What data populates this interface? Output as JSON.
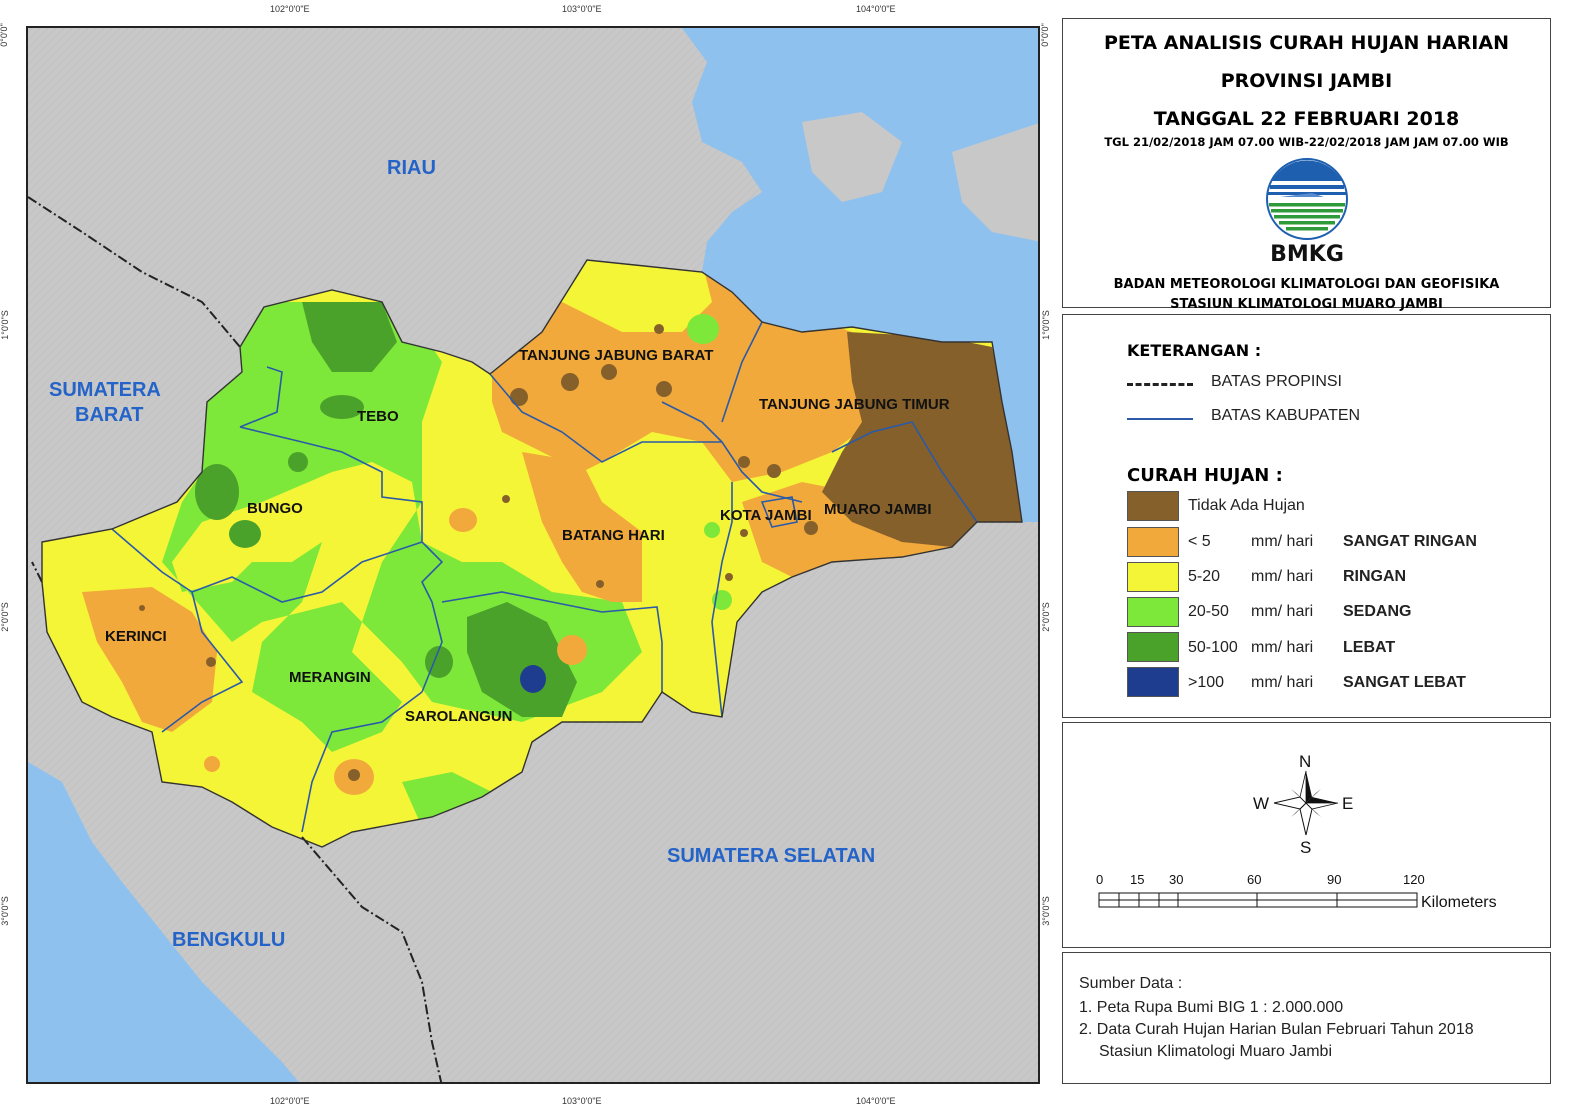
{
  "coords": {
    "top": [
      "102°0'0\"E",
      "103°0'0\"E",
      "104°0'0\"E"
    ],
    "bottom": [
      "102°0'0\"E",
      "103°0'0\"E",
      "104°0'0\"E"
    ],
    "left": [
      "0°0'0\"",
      "1°0'0\"S",
      "2°0'0\"S",
      "3°0'0\"S"
    ],
    "right": [
      "0°0'0\"",
      "1°0'0\"S",
      "2°0'0\"S",
      "3°0'0\"S"
    ]
  },
  "map": {
    "neighbors": {
      "riau": "RIAU",
      "sumbar_1": "SUMATERA",
      "sumbar_2": "BARAT",
      "sumsel": "SUMATERA SELATAN",
      "bengkulu": "BENGKULU"
    },
    "districts": {
      "tebo": "TEBO",
      "bungo": "BUNGO",
      "kerinci": "KERINCI",
      "merangin": "MERANGIN",
      "sarolangun": "SAROLANGUN",
      "batang_hari": "BATANG HARI",
      "tanjab_barat": "TANJUNG JABUNG BARAT",
      "tanjab_timur": "TANJUNG JABUNG TIMUR",
      "kota_jambi": "KOTA JAMBI",
      "muaro_jambi": "MUARO JAMBI"
    },
    "colors": {
      "sea": "#8ec1ee",
      "land": "#c8c8c8",
      "no_rain": "#86602b",
      "very_light": "#f2a93b",
      "light": "#f5f537",
      "moderate": "#7ee83a",
      "heavy": "#4ba22a",
      "very_heavy": "#1e3d8f"
    }
  },
  "title": {
    "line1": "PETA ANALISIS CURAH HUJAN HARIAN",
    "line2": "PROVINSI JAMBI",
    "line3": "TANGGAL 22 FEBRUARI 2018",
    "period": "TGL 21/02/2018 JAM 07.00 WIB-22/02/2018 JAM JAM 07.00 WIB",
    "logo_text": "BMKG",
    "org1": "BADAN METEOROLOGI KLIMATOLOGI DAN GEOFISIKA",
    "org2": "STASIUN KLIMATOLOGI MUARO JAMBI"
  },
  "legend": {
    "header": "KETERANGAN :",
    "boundaries": [
      {
        "label": "BATAS PROPINSI"
      },
      {
        "label": "BATAS KABUPATEN"
      }
    ],
    "rain_header": "CURAH HUJAN :",
    "classes": [
      {
        "range": "Tidak Ada Hujan",
        "unit": "",
        "name": "",
        "color": "#86602b"
      },
      {
        "range": "< 5",
        "unit": "mm/ hari",
        "name": "SANGAT RINGAN",
        "color": "#f2a93b"
      },
      {
        "range": "5-20",
        "unit": "mm/ hari",
        "name": "RINGAN",
        "color": "#f5f537"
      },
      {
        "range": "20-50",
        "unit": "mm/ hari",
        "name": "SEDANG",
        "color": "#7ee83a"
      },
      {
        "range": "50-100",
        "unit": "mm/ hari",
        "name": "LEBAT",
        "color": "#4ba22a"
      },
      {
        "range": ">100",
        "unit": "mm/ hari",
        "name": "SANGAT LEBAT",
        "color": "#1e3d8f"
      }
    ]
  },
  "compass": {
    "n": "N",
    "s": "S",
    "e": "E",
    "w": "W"
  },
  "scale_bar": {
    "ticks": [
      "0",
      "15",
      "30",
      "60",
      "90",
      "120"
    ],
    "unit": "Kilometers"
  },
  "sources": {
    "header": "Sumber Data :",
    "items": [
      "1. Peta Rupa Bumi BIG 1 : 2.000.000",
      "2. Data Curah Hujan Harian Bulan Februari Tahun 2018",
      "Stasiun Klimatologi Muaro Jambi"
    ]
  }
}
